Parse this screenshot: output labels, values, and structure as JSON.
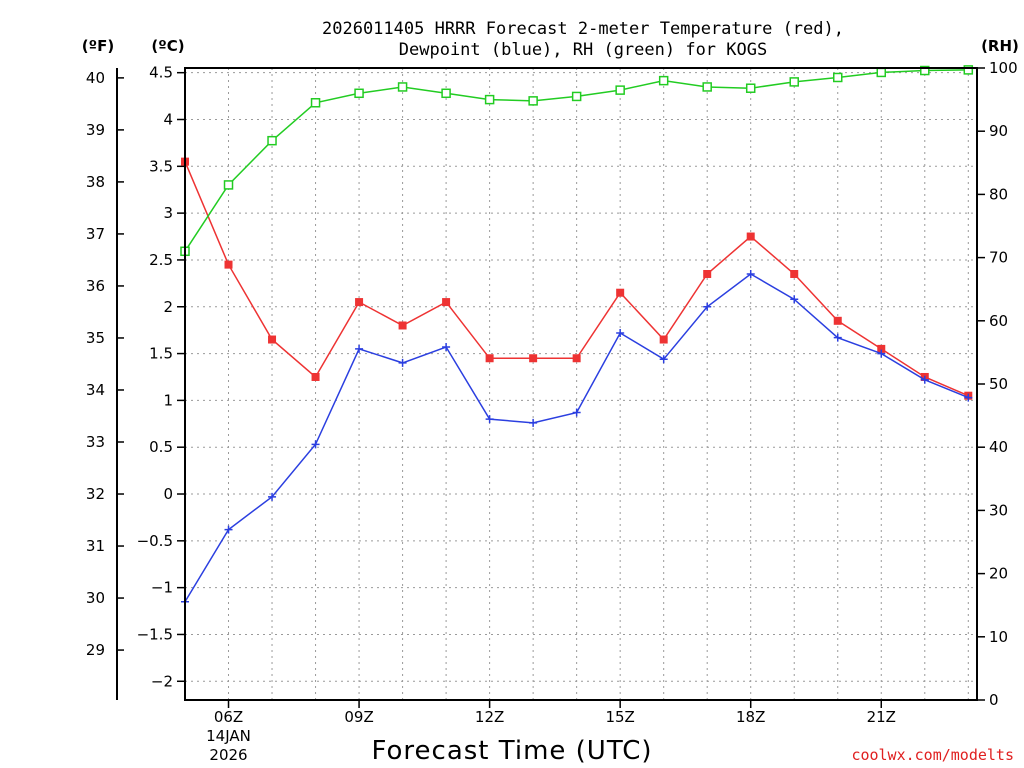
{
  "chart_data": {
    "type": "line",
    "title_line1": "2026011405 HRRR Forecast 2-meter Temperature (red),",
    "title_line2": "Dewpoint (blue), RH (green) for KOGS",
    "xlabel": "Forecast Time (UTC)",
    "credit": "coolwx.com/modelts",
    "unit_labels": {
      "fahrenheit": "(ºF)",
      "celsius": "(ºC)",
      "rh": "(RH)"
    },
    "x": [
      5,
      6,
      7,
      8,
      9,
      10,
      11,
      12,
      13,
      14,
      15,
      16,
      17,
      18,
      19,
      20,
      21,
      22,
      23
    ],
    "xlim": [
      5,
      23.2
    ],
    "x_ticks": [
      {
        "x": 6,
        "label": "06Z",
        "sub1": "14JAN",
        "sub2": "2026"
      },
      {
        "x": 9,
        "label": "09Z"
      },
      {
        "x": 12,
        "label": "12Z"
      },
      {
        "x": 15,
        "label": "15Z"
      },
      {
        "x": 18,
        "label": "18Z"
      },
      {
        "x": 21,
        "label": "21Z"
      }
    ],
    "celsius_axis": {
      "ylim": [
        -2.2,
        4.55
      ],
      "ticks": [
        -2,
        -1.5,
        -1,
        -0.5,
        0,
        0.5,
        1,
        1.5,
        2,
        2.5,
        3,
        3.5,
        4,
        4.5
      ],
      "tick_labels": [
        "−2",
        "−1.5",
        "−1",
        "−0.5",
        "0",
        "0.5",
        "1",
        "1.5",
        "2",
        "2.5",
        "3",
        "3.5",
        "4",
        "4.5"
      ]
    },
    "fahrenheit_axis": {
      "ticks": [
        29,
        30,
        31,
        32,
        33,
        34,
        35,
        36,
        37,
        38,
        39,
        40
      ],
      "tick_labels": [
        "29",
        "30",
        "31",
        "32",
        "33",
        "34",
        "35",
        "36",
        "37",
        "38",
        "39",
        "40"
      ]
    },
    "rh_axis": {
      "ylim": [
        0,
        100
      ],
      "ticks": [
        0,
        10,
        20,
        30,
        40,
        50,
        60,
        70,
        80,
        90,
        100
      ],
      "tick_labels": [
        "0",
        "10",
        "20",
        "30",
        "40",
        "50",
        "60",
        "70",
        "80",
        "90",
        "100"
      ]
    },
    "series": [
      {
        "name": "Temperature",
        "color": "#ee3333",
        "marker": "filled-square",
        "axis": "celsius",
        "values": [
          3.55,
          2.45,
          1.65,
          1.25,
          2.05,
          1.8,
          2.05,
          1.45,
          1.45,
          1.45,
          2.15,
          1.65,
          2.35,
          2.75,
          2.35,
          1.85,
          1.55,
          1.25,
          1.05
        ]
      },
      {
        "name": "Dewpoint",
        "color": "#2b3fe0",
        "marker": "plus",
        "axis": "celsius",
        "values": [
          -1.15,
          -0.38,
          -0.03,
          0.53,
          1.55,
          1.4,
          1.57,
          0.8,
          0.76,
          0.87,
          1.72,
          1.44,
          2.0,
          2.35,
          2.08,
          1.67,
          1.5,
          1.22,
          1.03
        ]
      },
      {
        "name": "RH",
        "color": "#22cc22",
        "marker": "open-square",
        "axis": "rh",
        "values": [
          71,
          81.5,
          88.5,
          94.5,
          96,
          97,
          96,
          95,
          94.8,
          95.5,
          96.5,
          98,
          97,
          96.8,
          97.8,
          98.5,
          99.3,
          99.6,
          99.7
        ]
      }
    ]
  }
}
